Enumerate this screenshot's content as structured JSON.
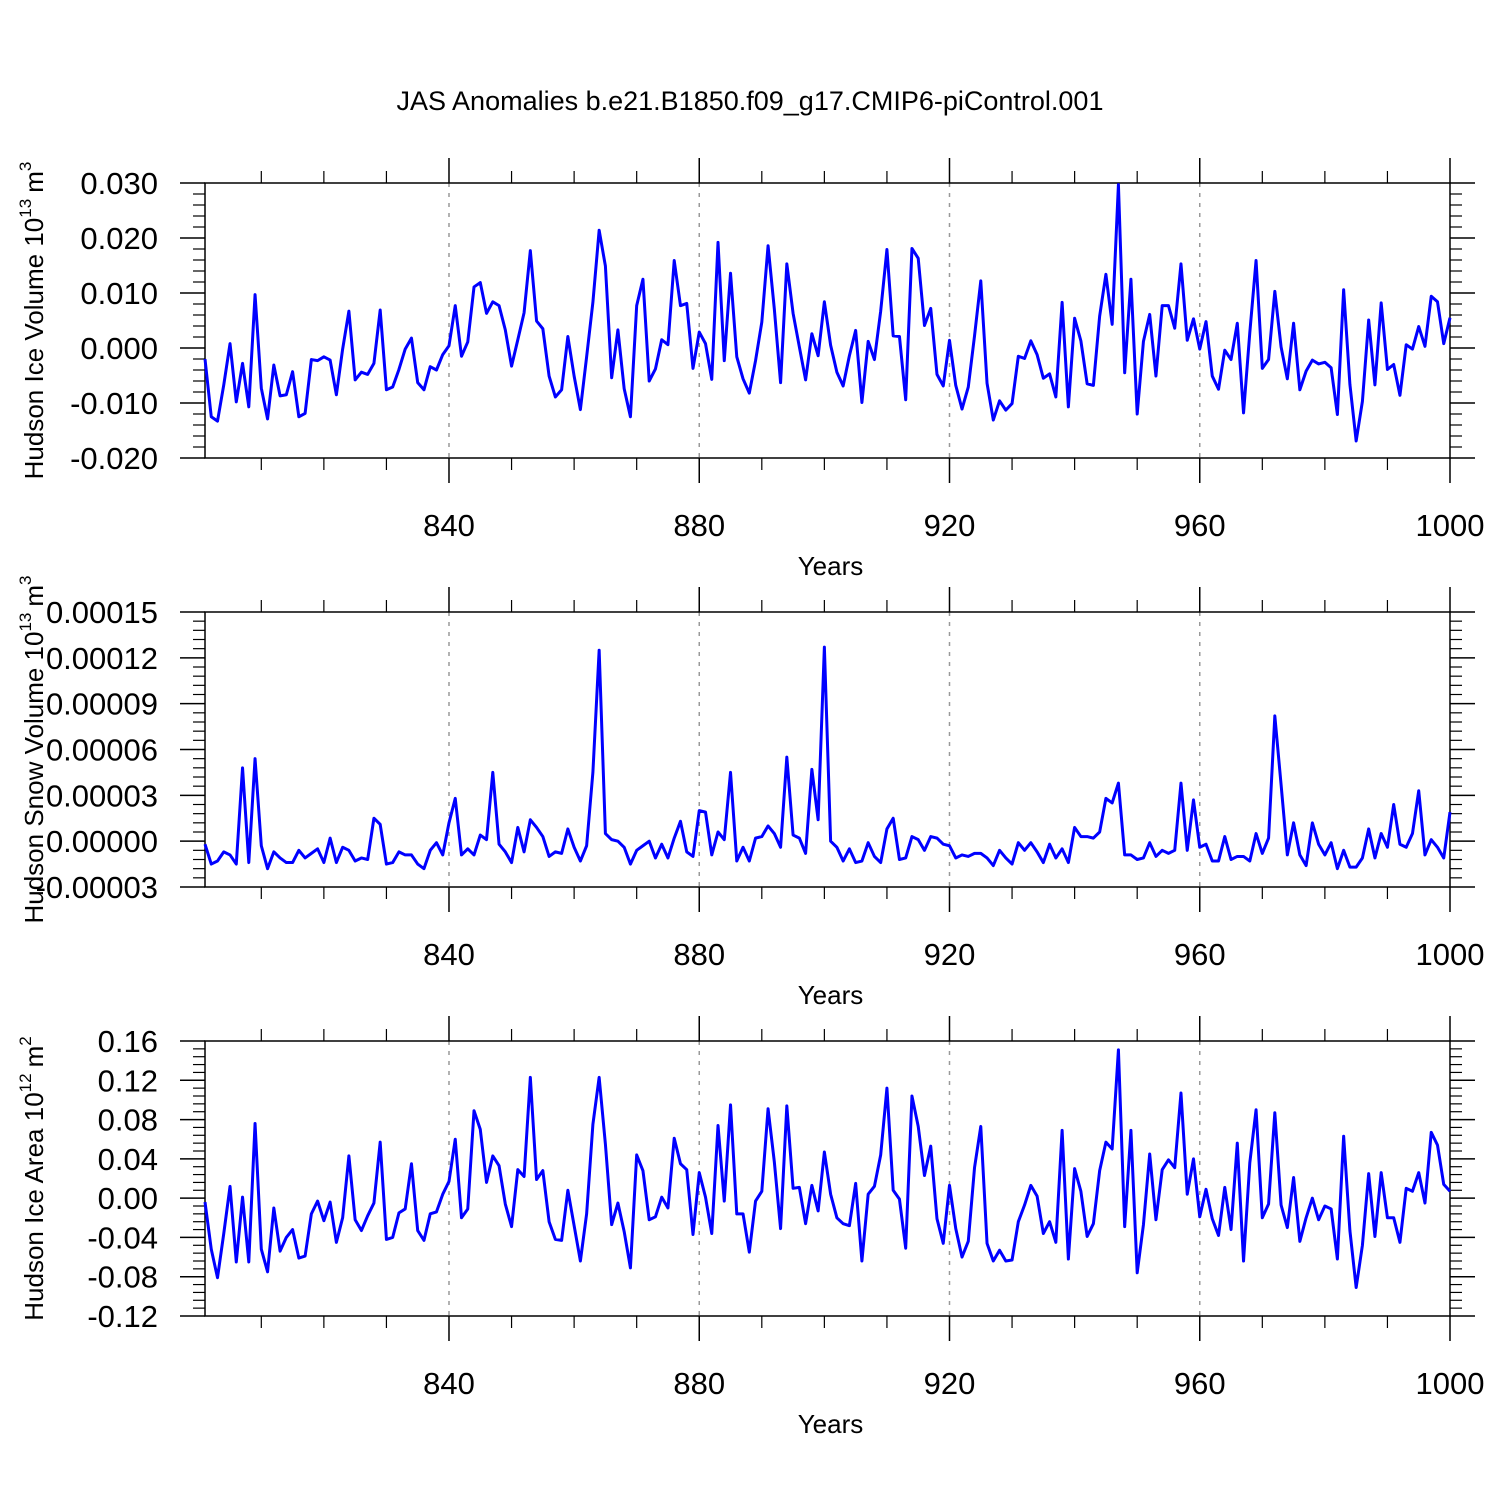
{
  "title": "JAS Anomalies b.e21.B1850.f09_g17.CMIP6-piControl.001",
  "chart_data": [
    {
      "type": "line",
      "xlabel": "Years",
      "ylabel": "Hudson Ice Volume 10",
      "ylabel_exp": "13",
      "ylabel_unit": "m",
      "ylabel_unit_exp": "3",
      "xlim": [
        801,
        1000
      ],
      "ylim": [
        -0.02,
        0.03
      ],
      "xticks": [
        840,
        880,
        920,
        960,
        1000
      ],
      "yticks": [
        "-0.020",
        "-0.010",
        "0.000",
        "0.010",
        "0.020",
        "0.030"
      ],
      "ytick_values": [
        -0.02,
        -0.01,
        0.0,
        0.01,
        0.02,
        0.03
      ],
      "series_color": "#0000ff",
      "series": [
        {
          "name": "Hudson Ice Volume",
          "x_start": 801,
          "values": [
            -0.002,
            -0.0125,
            -0.0133,
            -0.0067,
            0.0008,
            -0.0098,
            -0.0028,
            -0.0107,
            0.0097,
            -0.0073,
            -0.0129,
            -0.0031,
            -0.0087,
            -0.0085,
            -0.0043,
            -0.0125,
            -0.0119,
            -0.0021,
            -0.0023,
            -0.0016,
            -0.0022,
            -0.0085,
            -0.0002,
            0.0067,
            -0.0058,
            -0.0044,
            -0.0048,
            -0.0028,
            0.0069,
            -0.0076,
            -0.0071,
            -0.0039,
            -0.0002,
            0.0018,
            -0.0063,
            -0.0076,
            -0.0034,
            -0.004,
            -0.0012,
            0.0004,
            0.0077,
            -0.0015,
            0.0011,
            0.0111,
            0.0119,
            0.0063,
            0.0084,
            0.0077,
            0.0033,
            -0.0033,
            0.0015,
            0.0064,
            0.0177,
            0.0049,
            0.0035,
            -0.0051,
            -0.0089,
            -0.0076,
            0.0021,
            -0.0051,
            -0.0112,
            -0.0016,
            0.0083,
            0.0214,
            0.0149,
            -0.0054,
            0.0033,
            -0.0074,
            -0.0125,
            0.0077,
            0.0125,
            -0.006,
            -0.0038,
            0.0015,
            0.0006,
            0.0159,
            0.0077,
            0.0081,
            -0.0037,
            0.0029,
            0.0008,
            -0.0057,
            0.0192,
            -0.0023,
            0.0136,
            -0.0016,
            -0.0056,
            -0.0082,
            -0.0023,
            0.0047,
            0.0186,
            0.0071,
            -0.0063,
            0.0153,
            0.0063,
            0.0002,
            -0.0058,
            0.0026,
            -0.0014,
            0.0084,
            0.0005,
            -0.0044,
            -0.0069,
            -0.0014,
            0.0032,
            -0.0099,
            0.0012,
            -0.0021,
            0.0067,
            0.0179,
            0.0022,
            0.0021,
            -0.0094,
            0.0181,
            0.0163,
            0.0041,
            0.0072,
            -0.0048,
            -0.0069,
            0.0014,
            -0.0068,
            -0.0111,
            -0.0071,
            0.0022,
            0.0122,
            -0.0064,
            -0.0131,
            -0.0096,
            -0.0113,
            -0.0101,
            -0.0015,
            -0.0019,
            0.0013,
            -0.0012,
            -0.0055,
            -0.0047,
            -0.0089,
            0.0083,
            -0.0107,
            0.0054,
            0.0013,
            -0.0065,
            -0.0068,
            0.0058,
            0.0134,
            0.0043,
            0.0297,
            -0.0045,
            0.0125,
            -0.012,
            0.0012,
            0.0061,
            -0.0051,
            0.0077,
            0.0077,
            0.0036,
            0.0153,
            0.0014,
            0.0053,
            -0.0002,
            0.0048,
            -0.0051,
            -0.0075,
            -0.0004,
            -0.0021,
            0.0045,
            -0.0118,
            0.0028,
            0.0159,
            -0.0037,
            -0.0021,
            0.0103,
            0.0002,
            -0.0056,
            0.0045,
            -0.0076,
            -0.0042,
            -0.0022,
            -0.0029,
            -0.0026,
            -0.0036,
            -0.0121,
            0.0106,
            -0.0066,
            -0.0169,
            -0.0097,
            0.0051,
            -0.0067,
            0.0082,
            -0.0039,
            -0.003,
            -0.0086,
            0.0006,
            -0.0002,
            0.0039,
            0.0003,
            0.0094,
            0.0084,
            0.0008,
            0.0055
          ]
        }
      ]
    },
    {
      "type": "line",
      "xlabel": "Years",
      "ylabel": "Hudson Snow Volume 10",
      "ylabel_exp": "13",
      "ylabel_unit": "m",
      "ylabel_unit_exp": "3",
      "xlim": [
        801,
        1000
      ],
      "ylim": [
        -3e-05,
        0.00015
      ],
      "xticks": [
        840,
        880,
        920,
        960,
        1000
      ],
      "yticks": [
        "-0.00003",
        "0.00000",
        "0.00003",
        "0.00006",
        "0.00009",
        "0.00012",
        "0.00015"
      ],
      "ytick_values": [
        -3e-05,
        0.0,
        3e-05,
        6e-05,
        9e-05,
        0.00012,
        0.00015
      ],
      "series_color": "#0000ff",
      "series": [
        {
          "name": "Hudson Snow Volume",
          "x_start": 801,
          "values": [
            -2e-06,
            -1.5e-05,
            -1.3e-05,
            -7e-06,
            -9e-06,
            -1.5e-05,
            4.8e-05,
            -1.4e-05,
            5.4e-05,
            -3e-06,
            -1.8e-05,
            -7e-06,
            -1.1e-05,
            -1.4e-05,
            -1.4e-05,
            -6e-06,
            -1.1e-05,
            -8e-06,
            -5e-06,
            -1.4e-05,
            2e-06,
            -1.4e-05,
            -4e-06,
            -6e-06,
            -1.3e-05,
            -1.1e-05,
            -1.2e-05,
            1.5e-05,
            1.1e-05,
            -1.5e-05,
            -1.4e-05,
            -7e-06,
            -9e-06,
            -9e-06,
            -1.5e-05,
            -1.8e-05,
            -6e-06,
            -1e-06,
            -9e-06,
            1.2e-05,
            2.8e-05,
            -9e-06,
            -5e-06,
            -9e-06,
            4e-06,
            1e-06,
            4.5e-05,
            -2e-06,
            -7e-06,
            -1.4e-05,
            9e-06,
            -7e-06,
            1.4e-05,
            9e-06,
            3e-06,
            -1e-05,
            -7e-06,
            -8e-06,
            8e-06,
            -4e-06,
            -1.3e-05,
            -3e-06,
            4.5e-05,
            0.000125,
            5e-06,
            1e-06,
            0.0,
            -4e-06,
            -1.5e-05,
            -6e-06,
            -3e-06,
            0.0,
            -1.1e-05,
            -2e-06,
            -1.1e-05,
            2e-06,
            1.3e-05,
            -7e-06,
            -1e-05,
            2e-05,
            1.9e-05,
            -9e-06,
            6e-06,
            1e-06,
            4.5e-05,
            -1.3e-05,
            -4e-06,
            -1.3e-05,
            2e-06,
            3e-06,
            1e-05,
            5e-06,
            -4e-06,
            5.5e-05,
            4e-06,
            2e-06,
            -8e-06,
            4.7e-05,
            1.4e-05,
            0.000127,
            0.0,
            -4e-06,
            -1.3e-05,
            -5e-06,
            -1.4e-05,
            -1.3e-05,
            -1e-06,
            -1e-05,
            -1.4e-05,
            8e-06,
            1.5e-05,
            -1.2e-05,
            -1.1e-05,
            3e-06,
            1e-06,
            -6e-06,
            3e-06,
            2e-06,
            -2e-06,
            -3e-06,
            -1.1e-05,
            -9e-06,
            -1e-05,
            -8e-06,
            -8e-06,
            -1.1e-05,
            -1.6e-05,
            -6e-06,
            -1.1e-05,
            -1.5e-05,
            -1e-06,
            -6e-06,
            -1e-06,
            -7e-06,
            -1.4e-05,
            -2e-06,
            -1.1e-05,
            -5e-06,
            -1.4e-05,
            9e-06,
            3e-06,
            3e-06,
            2e-06,
            6e-06,
            2.8e-05,
            2.5e-05,
            3.8e-05,
            -9e-06,
            -9e-06,
            -1.2e-05,
            -1.1e-05,
            -1e-06,
            -1e-05,
            -6e-06,
            -8e-06,
            -6e-06,
            3.8e-05,
            -6e-06,
            2.7e-05,
            -4e-06,
            -2e-06,
            -1.3e-05,
            -1.3e-05,
            3e-06,
            -1.2e-05,
            -1e-05,
            -1e-05,
            -1.3e-05,
            5e-06,
            -8e-06,
            2e-06,
            8.2e-05,
            3.7e-05,
            -9e-06,
            1.2e-05,
            -9e-06,
            -1.6e-05,
            1.2e-05,
            -2e-06,
            -9e-06,
            -1e-06,
            -1.8e-05,
            -6e-06,
            -1.7e-05,
            -1.7e-05,
            -1.1e-05,
            8e-06,
            -1.1e-05,
            5e-06,
            -4e-06,
            2.4e-05,
            -2e-06,
            -4e-06,
            5e-06,
            3.3e-05,
            -9e-06,
            1e-06,
            -4e-06,
            -1.1e-05,
            1.9e-05
          ]
        }
      ]
    },
    {
      "type": "line",
      "xlabel": "Years",
      "ylabel": "Hudson Ice Area 10",
      "ylabel_exp": "12",
      "ylabel_unit": "m",
      "ylabel_unit_exp": "2",
      "xlim": [
        801,
        1000
      ],
      "ylim": [
        -0.12,
        0.16
      ],
      "xticks": [
        840,
        880,
        920,
        960,
        1000
      ],
      "yticks": [
        "-0.12",
        "-0.08",
        "-0.04",
        "0.00",
        "0.04",
        "0.08",
        "0.12",
        "0.16"
      ],
      "ytick_values": [
        -0.12,
        -0.08,
        -0.04,
        0.0,
        0.04,
        0.08,
        0.12,
        0.16
      ],
      "series_color": "#0000ff",
      "series": [
        {
          "name": "Hudson Ice Area",
          "x_start": 801,
          "values": [
            -0.004,
            -0.052,
            -0.081,
            -0.036,
            0.012,
            -0.065,
            0.001,
            -0.065,
            0.076,
            -0.052,
            -0.075,
            -0.01,
            -0.054,
            -0.04,
            -0.032,
            -0.061,
            -0.059,
            -0.016,
            -0.003,
            -0.023,
            -0.004,
            -0.045,
            -0.02,
            0.043,
            -0.022,
            -0.033,
            -0.018,
            -0.005,
            0.057,
            -0.042,
            -0.04,
            -0.015,
            -0.011,
            0.035,
            -0.033,
            -0.043,
            -0.016,
            -0.014,
            0.004,
            0.017,
            0.06,
            -0.02,
            -0.011,
            0.089,
            0.07,
            0.016,
            0.043,
            0.033,
            -0.006,
            -0.029,
            0.029,
            0.022,
            0.123,
            0.019,
            0.028,
            -0.024,
            -0.042,
            -0.043,
            0.008,
            -0.028,
            -0.064,
            -0.016,
            0.075,
            0.123,
            0.055,
            -0.027,
            -0.005,
            -0.034,
            -0.071,
            0.044,
            0.028,
            -0.022,
            -0.019,
            0.001,
            -0.01,
            0.061,
            0.035,
            0.029,
            -0.037,
            0.026,
            0.001,
            -0.036,
            0.074,
            -0.003,
            0.095,
            -0.016,
            -0.016,
            -0.055,
            -0.003,
            0.007,
            0.091,
            0.037,
            -0.031,
            0.094,
            0.01,
            0.011,
            -0.026,
            0.013,
            -0.013,
            0.047,
            0.004,
            -0.02,
            -0.026,
            -0.028,
            0.015,
            -0.064,
            0.004,
            0.012,
            0.044,
            0.112,
            0.008,
            -0.001,
            -0.051,
            0.104,
            0.073,
            0.023,
            0.053,
            -0.021,
            -0.046,
            0.013,
            -0.031,
            -0.06,
            -0.044,
            0.031,
            0.073,
            -0.046,
            -0.064,
            -0.053,
            -0.064,
            -0.063,
            -0.024,
            -0.007,
            0.013,
            0.002,
            -0.036,
            -0.024,
            -0.045,
            0.069,
            -0.062,
            0.03,
            0.007,
            -0.039,
            -0.026,
            0.028,
            0.057,
            0.05,
            0.151,
            -0.029,
            0.069,
            -0.076,
            -0.027,
            0.045,
            -0.022,
            0.029,
            0.039,
            0.031,
            0.107,
            0.004,
            0.04,
            -0.019,
            0.009,
            -0.021,
            -0.038,
            0.011,
            -0.032,
            0.056,
            -0.064,
            0.036,
            0.09,
            -0.02,
            -0.006,
            0.087,
            -0.007,
            -0.03,
            0.021,
            -0.044,
            -0.02,
            0.0,
            -0.022,
            -0.008,
            -0.011,
            -0.062,
            0.063,
            -0.033,
            -0.091,
            -0.048,
            0.025,
            -0.039,
            0.026,
            -0.02,
            -0.02,
            -0.045,
            0.01,
            0.007,
            0.026,
            -0.005,
            0.067,
            0.054,
            0.014,
            0.007
          ]
        }
      ]
    }
  ]
}
